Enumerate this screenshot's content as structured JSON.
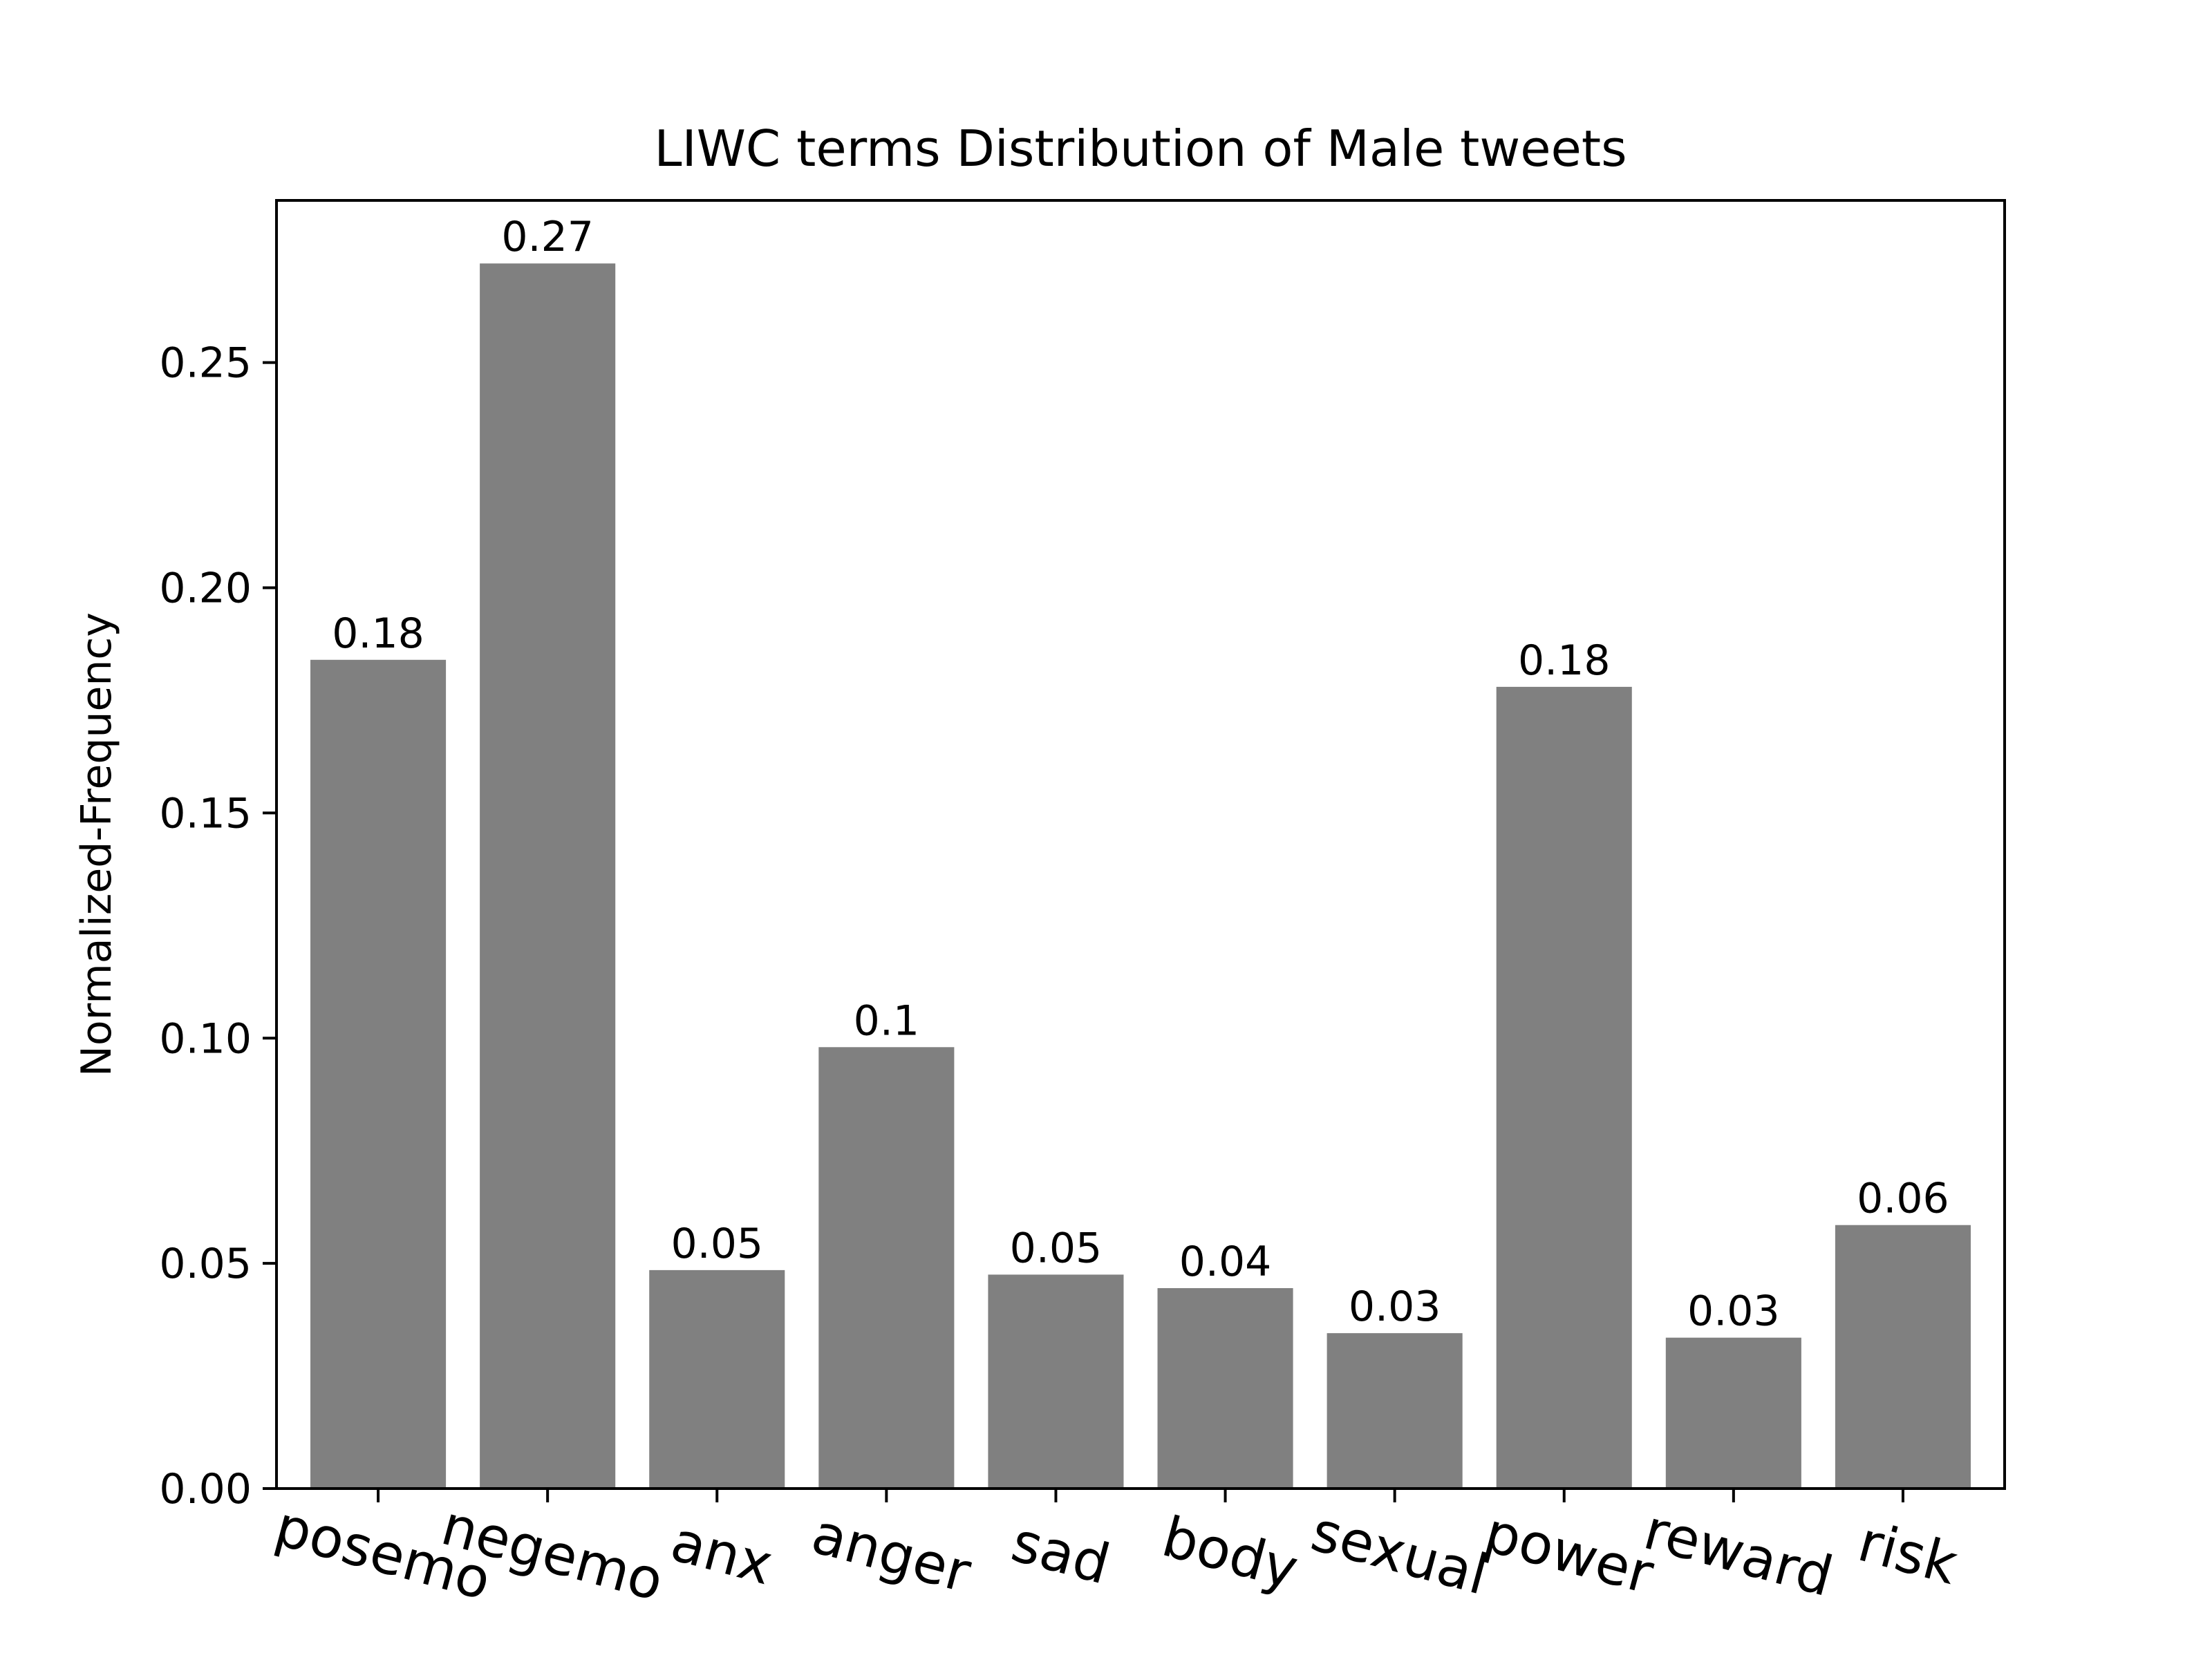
{
  "chart_data": {
    "type": "bar",
    "title": "LIWC terms Distribution of Male tweets",
    "xlabel": "",
    "ylabel": "Normalized-Frequency",
    "categories": [
      "posemo",
      "negemo",
      "anx",
      "anger",
      "sad",
      "body",
      "sexual",
      "power",
      "reward",
      "risk"
    ],
    "values": [
      0.184,
      0.272,
      0.0485,
      0.098,
      0.0475,
      0.0445,
      0.0345,
      0.178,
      0.0335,
      0.0585
    ],
    "data_labels": [
      "0.18",
      "0.27",
      "0.05",
      "0.1",
      "0.05",
      "0.04",
      "0.03",
      "0.18",
      "0.03",
      "0.06"
    ],
    "ylim": [
      0,
      0.286
    ],
    "yticks": [
      0.0,
      0.05,
      0.1,
      0.15,
      0.2,
      0.25
    ],
    "ytick_labels": [
      "0.00",
      "0.05",
      "0.10",
      "0.15",
      "0.20",
      "0.25"
    ],
    "bar_color": "#808080",
    "xtick_rotation_deg": 15,
    "grid": false,
    "legend": "none"
  }
}
